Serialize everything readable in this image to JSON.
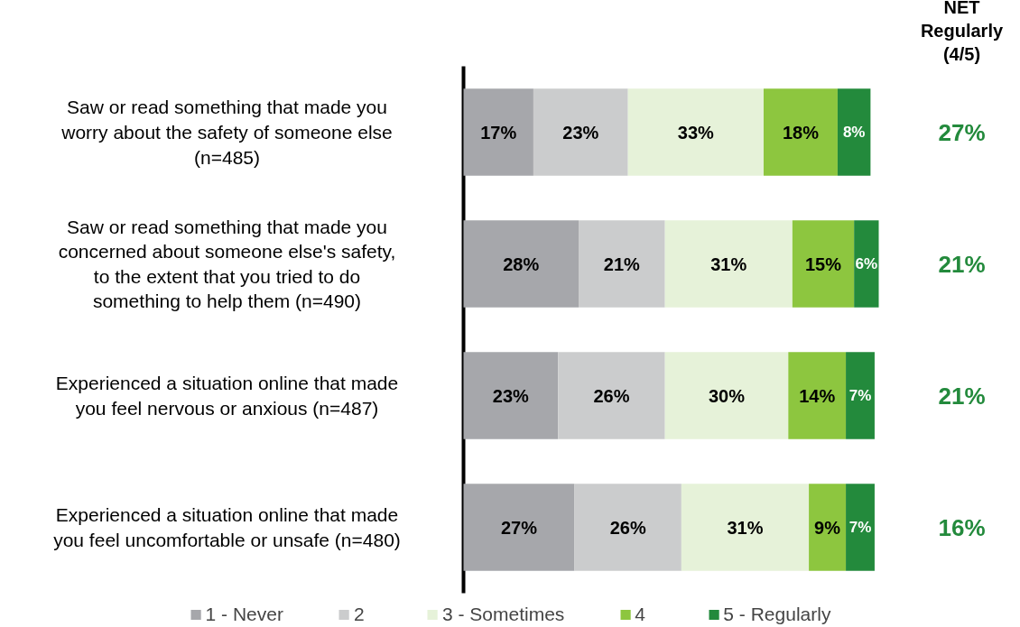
{
  "chart_data": {
    "type": "bar",
    "orientation": "horizontal",
    "stacked": true,
    "categories": [
      "Saw or read something that made you worry about the safety of someone else (n=485)",
      "Saw or read something that made you concerned about someone else's safety, to the extent that you tried to do something to help them (n=490)",
      "Experienced a situation online that made you feel nervous or anxious (n=487)",
      "Experienced a situation online that made you feel uncomfortable or unsafe (n=480)"
    ],
    "series": [
      {
        "name": "1 - Never",
        "color": "#a6a7ab",
        "values": [
          17,
          28,
          23,
          27
        ],
        "value_labels": [
          "17%",
          "28%",
          "23%",
          "27%"
        ]
      },
      {
        "name": "2",
        "color": "#cbcccd",
        "values": [
          23,
          21,
          26,
          26
        ],
        "value_labels": [
          "23%",
          "21%",
          "26%",
          "26%"
        ]
      },
      {
        "name": "3 - Sometimes",
        "color": "#e6f2d9",
        "values": [
          33,
          31,
          30,
          31
        ],
        "value_labels": [
          "33%",
          "31%",
          "30%",
          "31%"
        ]
      },
      {
        "name": "4",
        "color": "#8dc63f",
        "values": [
          18,
          15,
          14,
          9
        ],
        "value_labels": [
          "18%",
          "15%",
          "14%",
          "9%"
        ]
      },
      {
        "name": "5 - Regularly",
        "color": "#238a3c",
        "values": [
          8,
          6,
          7,
          7
        ],
        "value_labels": [
          "8%",
          "6%",
          "7%",
          "7%"
        ]
      }
    ],
    "xlim": [
      0,
      101
    ],
    "tick_labels": "y",
    "grid": false,
    "legend": "bottom",
    "annotations": [
      "NET Regularly (4/5)",
      "27%",
      "21%",
      "21%",
      "16%"
    ]
  }
}
